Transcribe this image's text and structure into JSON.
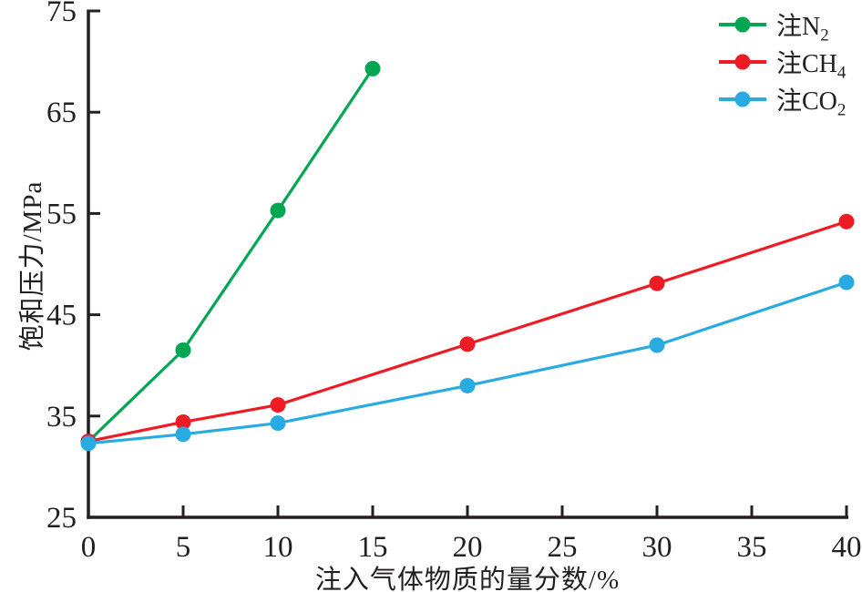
{
  "figure": {
    "background": "#ffffff",
    "axis_color": "#231F20"
  },
  "chart_data": {
    "type": "line",
    "title": "",
    "xlabel": "注入气体物质的量分数/%",
    "ylabel": "饱和压力/MPa",
    "xlim": [
      0,
      40
    ],
    "ylim": [
      25,
      75
    ],
    "xticks": [
      0,
      5,
      10,
      15,
      20,
      25,
      30,
      35,
      40
    ],
    "yticks": [
      25,
      35,
      45,
      55,
      65,
      75
    ],
    "grid": false,
    "legend_position": "top-right",
    "marker": "circle",
    "series": [
      {
        "id": "n2",
        "name": "注N2",
        "legend_base": "注N",
        "legend_sub": "2",
        "color": "#00A651",
        "x": [
          0,
          5,
          10,
          15
        ],
        "y": [
          32.5,
          41.5,
          55.3,
          69.3
        ]
      },
      {
        "id": "ch4",
        "name": "注CH4",
        "legend_base": "注CH",
        "legend_sub": "4",
        "color": "#ED1C24",
        "x": [
          0,
          5,
          10,
          20,
          30,
          40
        ],
        "y": [
          32.5,
          34.4,
          36.1,
          42.1,
          48.1,
          54.2
        ]
      },
      {
        "id": "co2",
        "name": "注CO2",
        "legend_base": "注CO",
        "legend_sub": "2",
        "color": "#29ABE2",
        "x": [
          0,
          5,
          10,
          20,
          30,
          40
        ],
        "y": [
          32.3,
          33.2,
          34.3,
          38.0,
          42.0,
          48.2
        ]
      }
    ]
  }
}
